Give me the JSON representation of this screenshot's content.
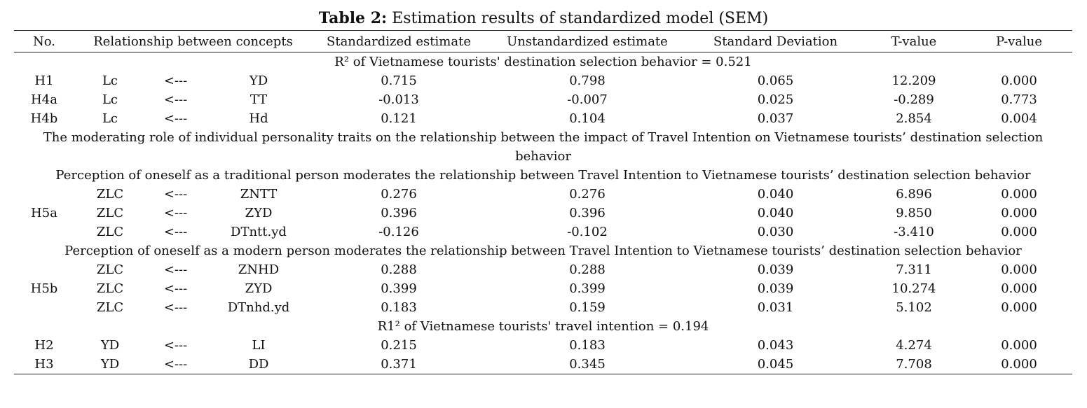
{
  "caption": {
    "label": "Table 2:",
    "text": " Estimation results of standardized model (SEM)"
  },
  "headers": {
    "no": "No.",
    "relationship": "Relationship between concepts",
    "std": "Standardized estimate",
    "unstd": "Unstandardized estimate",
    "sd": "Standard Deviation",
    "t": "T-value",
    "p": "P-value"
  },
  "sections": {
    "r2_behavior": "R² of Vietnamese tourists' destination selection behavior = 0.521",
    "moderating": "The moderating role of individual personality traits on the relationship between the impact of Travel Intention on Vietnamese tourists’ destination selection behavior",
    "traditional": "Perception of oneself as a traditional person moderates the relationship between Travel Intention to Vietnamese tourists’ destination selection behavior",
    "modern": "Perception of oneself as a modern person moderates the relationship between Travel Intention to Vietnamese tourists’ destination selection behavior",
    "r1_intention": "R1² of Vietnamese tourists' travel intention = 0.194"
  },
  "rows": {
    "h1": {
      "no": "H1",
      "from": "Lc",
      "arrow": "<---",
      "to": "YD",
      "std": "0.715",
      "unstd": "0.798",
      "sd": "0.065",
      "t": "12.209",
      "p": "0.000"
    },
    "h4a": {
      "no": "H4a",
      "from": "Lc",
      "arrow": "<---",
      "to": "TT",
      "std": "-0.013",
      "unstd": "-0.007",
      "sd": "0.025",
      "t": "-0.289",
      "p": "0.773"
    },
    "h4b": {
      "no": "H4b",
      "from": "Lc",
      "arrow": "<---",
      "to": "Hd",
      "std": "0.121",
      "unstd": "0.104",
      "sd": "0.037",
      "t": "2.854",
      "p": "0.004"
    },
    "h5a_1": {
      "no": "",
      "from": "ZLC",
      "arrow": "<---",
      "to": "ZNTT",
      "std": "0.276",
      "unstd": "0.276",
      "sd": "0.040",
      "t": "6.896",
      "p": "0.000"
    },
    "h5a_2": {
      "no": "H5a",
      "from": "ZLC",
      "arrow": "<---",
      "to": "ZYD",
      "std": "0.396",
      "unstd": "0.396",
      "sd": "0.040",
      "t": "9.850",
      "p": "0.000"
    },
    "h5a_3": {
      "no": "",
      "from": "ZLC",
      "arrow": "<---",
      "to": "DTntt.yd",
      "std": "-0.126",
      "unstd": "-0.102",
      "sd": "0.030",
      "t": "-3.410",
      "p": "0.000"
    },
    "h5b_1": {
      "no": "",
      "from": "ZLC",
      "arrow": "<---",
      "to": "ZNHD",
      "std": "0.288",
      "unstd": "0.288",
      "sd": "0.039",
      "t": "7.311",
      "p": "0.000"
    },
    "h5b_2": {
      "no": "H5b",
      "from": "ZLC",
      "arrow": "<---",
      "to": "ZYD",
      "std": "0.399",
      "unstd": "0.399",
      "sd": "0.039",
      "t": "10.274",
      "p": "0.000"
    },
    "h5b_3": {
      "no": "",
      "from": "ZLC",
      "arrow": "<---",
      "to": "DTnhd.yd",
      "std": "0.183",
      "unstd": "0.159",
      "sd": "0.031",
      "t": "5.102",
      "p": "0.000"
    },
    "h2": {
      "no": "H2",
      "from": "YD",
      "arrow": "<---",
      "to": "LI",
      "std": "0.215",
      "unstd": "0.183",
      "sd": "0.043",
      "t": "4.274",
      "p": "0.000"
    },
    "h3": {
      "no": "H3",
      "from": "YD",
      "arrow": "<---",
      "to": "DD",
      "std": "0.371",
      "unstd": "0.345",
      "sd": "0.045",
      "t": "7.708",
      "p": "0.000"
    }
  }
}
